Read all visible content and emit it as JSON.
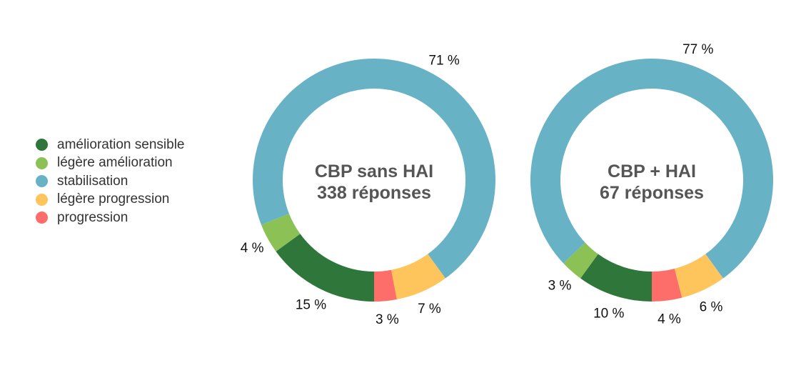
{
  "chart_data": [
    {
      "type": "pie",
      "donut": true,
      "title": "CBP sans HAI",
      "subtitle": "338 réponses",
      "categories": [
        "amélioration sensible",
        "légère amélioration",
        "stabilisation",
        "légère progression",
        "progression"
      ],
      "values": [
        15,
        4,
        71,
        7,
        3
      ],
      "labels": [
        "15 %",
        "4 %",
        "71 %",
        "7 %",
        "3 %"
      ]
    },
    {
      "type": "pie",
      "donut": true,
      "title": "CBP + HAI",
      "subtitle": "67 réponses",
      "categories": [
        "amélioration sensible",
        "légère amélioration",
        "stabilisation",
        "légère progression",
        "progression"
      ],
      "values": [
        10,
        3,
        77,
        6,
        4
      ],
      "labels": [
        "10 %",
        "3 %",
        "77 %",
        "6 %",
        "4 %"
      ]
    }
  ],
  "legend": {
    "position": "left",
    "items": [
      {
        "label": " amélioration sensible",
        "color": "#2e763a"
      },
      {
        "label": "légère amélioration",
        "color": "#8bc155"
      },
      {
        "label": "stabilisation",
        "color": "#68b2c6"
      },
      {
        "label": "légère progression",
        "color": "#fdc55c"
      },
      {
        "label": "progression",
        "color": "#fd6e6b"
      }
    ]
  }
}
